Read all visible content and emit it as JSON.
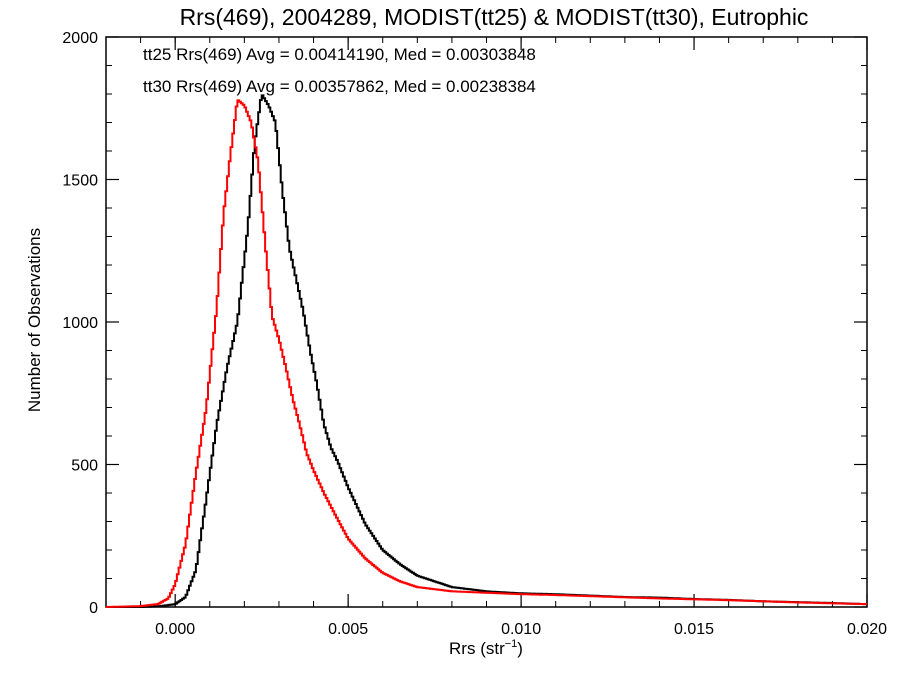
{
  "chart_data": {
    "type": "line",
    "title": "Rrs(469), 2004289, MODIST(tt25) & MODIST(tt30), Eutrophic",
    "xlabel_main": "Rrs (str",
    "xlabel_sup": "−1",
    "xlabel_close": ")",
    "ylabel": "Number of Observations",
    "xlim": [
      -0.002,
      0.02
    ],
    "ylim": [
      0,
      2000
    ],
    "xticks": [
      0.0,
      0.005,
      0.01,
      0.015,
      0.02
    ],
    "xtick_labels": [
      "0.000",
      "0.005",
      "0.010",
      "0.015",
      "0.020"
    ],
    "yticks": [
      0,
      500,
      1000,
      1500,
      2000
    ],
    "ytick_labels": [
      "0",
      "500",
      "1000",
      "1500",
      "2000"
    ],
    "grid": false,
    "annotations": [
      {
        "text": "tt25 Rrs(469) Avg = 0.00414190, Med = 0.00303848",
        "color": "#000000"
      },
      {
        "text": "tt30 Rrs(469) Avg = 0.00357862, Med = 0.00238384",
        "color": "#ff0000"
      }
    ],
    "series": [
      {
        "color": "#000000",
        "points": [
          [
            -0.002,
            0
          ],
          [
            -0.001,
            0
          ],
          [
            -0.0005,
            2
          ],
          [
            0.0,
            10
          ],
          [
            0.0003,
            35
          ],
          [
            0.0006,
            130
          ],
          [
            0.0009,
            380
          ],
          [
            0.0012,
            640
          ],
          [
            0.0015,
            840
          ],
          [
            0.0018,
            1000
          ],
          [
            0.0021,
            1330
          ],
          [
            0.0023,
            1630
          ],
          [
            0.0025,
            1800
          ],
          [
            0.0027,
            1760
          ],
          [
            0.0029,
            1700
          ],
          [
            0.0031,
            1460
          ],
          [
            0.0033,
            1260
          ],
          [
            0.0035,
            1150
          ],
          [
            0.0037,
            1040
          ],
          [
            0.0039,
            900
          ],
          [
            0.0041,
            780
          ],
          [
            0.0043,
            640
          ],
          [
            0.0045,
            560
          ],
          [
            0.0047,
            510
          ],
          [
            0.005,
            420
          ],
          [
            0.0055,
            290
          ],
          [
            0.006,
            200
          ],
          [
            0.0065,
            150
          ],
          [
            0.007,
            110
          ],
          [
            0.008,
            70
          ],
          [
            0.009,
            55
          ],
          [
            0.01,
            48
          ],
          [
            0.011,
            45
          ],
          [
            0.012,
            40
          ],
          [
            0.013,
            35
          ],
          [
            0.014,
            33
          ],
          [
            0.015,
            28
          ],
          [
            0.016,
            25
          ],
          [
            0.017,
            20
          ],
          [
            0.018,
            17
          ],
          [
            0.019,
            14
          ],
          [
            0.02,
            10
          ]
        ]
      },
      {
        "color": "#ff0000",
        "points": [
          [
            -0.002,
            0
          ],
          [
            -0.001,
            3
          ],
          [
            -0.0005,
            10
          ],
          [
            -0.0002,
            30
          ],
          [
            0.0,
            80
          ],
          [
            0.0003,
            220
          ],
          [
            0.0006,
            470
          ],
          [
            0.0009,
            700
          ],
          [
            0.0012,
            1050
          ],
          [
            0.0014,
            1380
          ],
          [
            0.0016,
            1590
          ],
          [
            0.0018,
            1780
          ],
          [
            0.002,
            1760
          ],
          [
            0.0022,
            1700
          ],
          [
            0.0024,
            1560
          ],
          [
            0.0026,
            1280
          ],
          [
            0.0028,
            1020
          ],
          [
            0.003,
            940
          ],
          [
            0.0032,
            840
          ],
          [
            0.0034,
            730
          ],
          [
            0.0036,
            640
          ],
          [
            0.0038,
            540
          ],
          [
            0.004,
            480
          ],
          [
            0.0043,
            400
          ],
          [
            0.0046,
            330
          ],
          [
            0.005,
            240
          ],
          [
            0.0055,
            170
          ],
          [
            0.006,
            120
          ],
          [
            0.0065,
            90
          ],
          [
            0.007,
            70
          ],
          [
            0.008,
            55
          ],
          [
            0.009,
            50
          ],
          [
            0.01,
            45
          ],
          [
            0.011,
            42
          ],
          [
            0.012,
            38
          ],
          [
            0.013,
            34
          ],
          [
            0.014,
            30
          ],
          [
            0.015,
            27
          ],
          [
            0.016,
            24
          ],
          [
            0.017,
            20
          ],
          [
            0.018,
            16
          ],
          [
            0.019,
            13
          ],
          [
            0.02,
            10
          ]
        ]
      }
    ]
  }
}
